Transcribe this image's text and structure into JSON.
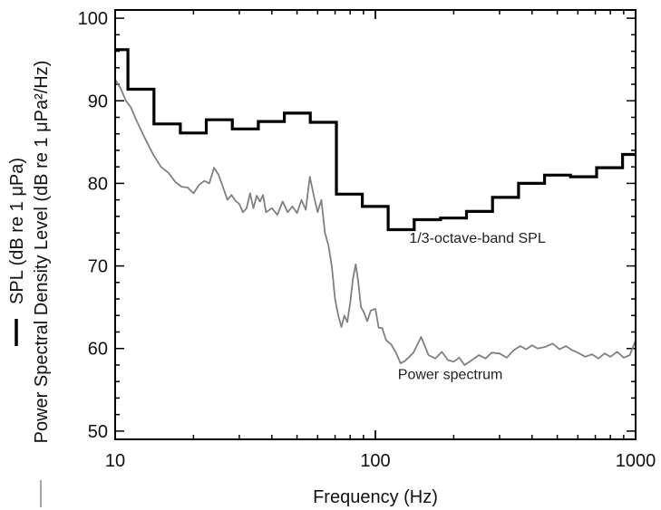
{
  "chart_data": {
    "type": "line",
    "title": "",
    "xlabel": "Frequency (Hz)",
    "ylabel_series": [
      {
        "text": "SPL (dB re 1 μPa)",
        "legend_color": "#000000"
      },
      {
        "text": "Power Spectral Density Level (dB re 1 μPa²/Hz)",
        "legend_color": "#888888"
      }
    ],
    "x_scale": "log",
    "xlim": [
      10,
      1000
    ],
    "ylim": [
      49,
      101
    ],
    "x_ticks": [
      {
        "value": 10,
        "label": "10"
      },
      {
        "value": 100,
        "label": "100"
      },
      {
        "value": 1000,
        "label": "1000"
      }
    ],
    "y_ticks": [
      {
        "value": 50,
        "label": "50"
      },
      {
        "value": 60,
        "label": "60"
      },
      {
        "value": 70,
        "label": "70"
      },
      {
        "value": 80,
        "label": "80"
      },
      {
        "value": 90,
        "label": "90"
      },
      {
        "value": 100,
        "label": "100"
      }
    ],
    "grid": false,
    "series": [
      {
        "name": "1/3-octave-band SPL",
        "type": "step",
        "color": "#000000",
        "band_edges": [
          10,
          11.2,
          14.1,
          17.8,
          22.4,
          28.2,
          35.5,
          44.7,
          56.2,
          70.8,
          89.1,
          112,
          141,
          178,
          224,
          282,
          355,
          447,
          562,
          708,
          891,
          1000
        ],
        "values": [
          96.2,
          91.4,
          87.2,
          86.1,
          87.7,
          86.6,
          87.5,
          88.5,
          87.4,
          78.7,
          77.2,
          74.4,
          75.6,
          75.8,
          76.6,
          78.3,
          80.0,
          81.0,
          80.8,
          81.9,
          83.5
        ]
      },
      {
        "name": "Power spectrum",
        "type": "line",
        "color": "#808080",
        "x": [
          10,
          10.5,
          11,
          11.5,
          12,
          13,
          14,
          15,
          16,
          17,
          18,
          19,
          20,
          21,
          22,
          23,
          24,
          25,
          26,
          27,
          28,
          29,
          30,
          31,
          32,
          33,
          34,
          35,
          36,
          37,
          38,
          40,
          42,
          44,
          46,
          48,
          50,
          52,
          54,
          56,
          58,
          60,
          62,
          64,
          66,
          68,
          70,
          72,
          74,
          76,
          78,
          80,
          82,
          84,
          86,
          88,
          90,
          93,
          96,
          100,
          103,
          106,
          110,
          115,
          120,
          125,
          130,
          135,
          140,
          150,
          160,
          170,
          180,
          190,
          200,
          210,
          220,
          235,
          250,
          265,
          280,
          300,
          320,
          340,
          360,
          380,
          400,
          420,
          450,
          480,
          510,
          540,
          570,
          600,
          640,
          680,
          720,
          760,
          800,
          850,
          900,
          950,
          1000
        ],
        "y": [
          92.6,
          91.5,
          90.0,
          89.2,
          87.8,
          85.5,
          83.5,
          82.0,
          81.3,
          80.2,
          79.6,
          79.5,
          78.8,
          79.8,
          80.3,
          80.0,
          81.9,
          81.0,
          79.5,
          78.0,
          78.6,
          77.9,
          77.5,
          76.5,
          77.0,
          78.8,
          77.0,
          78.5,
          77.8,
          78.6,
          76.5,
          77.0,
          76.2,
          77.8,
          76.5,
          77.2,
          76.4,
          78.0,
          76.8,
          80.8,
          78.5,
          76.5,
          78.0,
          74.0,
          72.5,
          70.0,
          66.0,
          64.0,
          62.6,
          64.0,
          63.2,
          65.5,
          68.5,
          70.2,
          68.0,
          65.0,
          64.5,
          63.3,
          64.6,
          64.8,
          62.5,
          62.5,
          61.0,
          60.5,
          59.5,
          58.2,
          58.5,
          59.0,
          59.5,
          61.4,
          59.2,
          58.8,
          59.6,
          58.6,
          58.4,
          58.9,
          58.0,
          58.6,
          59.2,
          58.8,
          59.5,
          59.4,
          58.9,
          59.8,
          60.3,
          59.9,
          60.4,
          60.0,
          60.2,
          60.6,
          59.9,
          60.3,
          59.8,
          59.5,
          59.0,
          59.3,
          58.8,
          59.4,
          59.0,
          59.6,
          58.9,
          59.2,
          61.0
        ]
      }
    ],
    "annotations": [
      {
        "text": "1/3-octave-band SPL",
        "x": 135,
        "y": 72.8
      },
      {
        "text": "Power spectrum",
        "x": 122,
        "y": 56.3
      }
    ]
  }
}
